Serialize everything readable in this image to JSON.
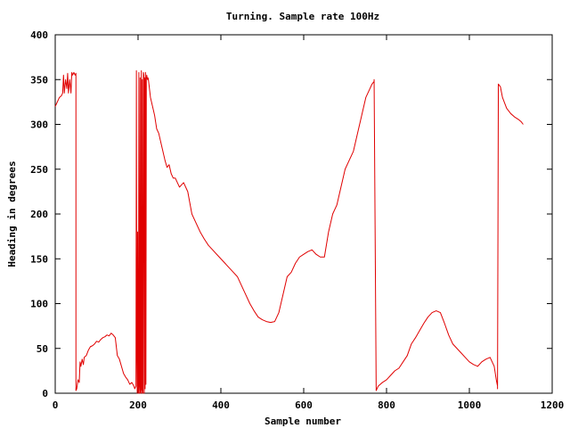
{
  "chart_data": {
    "type": "line",
    "title": "Turning. Sample rate 100Hz",
    "xlabel": "Sample number",
    "ylabel": "Heading in degrees",
    "xlim": [
      0,
      1200
    ],
    "ylim": [
      0,
      400
    ],
    "xticks": [
      "0",
      "200",
      "400",
      "600",
      "800",
      "1000",
      "1200"
    ],
    "yticks": [
      "0",
      "50",
      "100",
      "150",
      "200",
      "250",
      "300",
      "350",
      "400"
    ],
    "grid": false,
    "legend": "none",
    "series": [
      {
        "color": "#e00000",
        "x": [
          0,
          5,
          10,
          15,
          18,
          20,
          22,
          25,
          28,
          30,
          32,
          35,
          38,
          40,
          42,
          45,
          48,
          50,
          50,
          52,
          55,
          58,
          60,
          62,
          65,
          68,
          70,
          75,
          80,
          85,
          90,
          95,
          100,
          105,
          110,
          115,
          120,
          125,
          130,
          135,
          140,
          145,
          150,
          155,
          160,
          165,
          170,
          175,
          180,
          185,
          190,
          192,
          195,
          196,
          197,
          198,
          199,
          200,
          201,
          202,
          203,
          204,
          205,
          206,
          207,
          208,
          209,
          210,
          211,
          212,
          213,
          214,
          215,
          216,
          217,
          218,
          219,
          220,
          221,
          222,
          223,
          224,
          225,
          230,
          235,
          240,
          245,
          250,
          255,
          260,
          265,
          270,
          275,
          280,
          285,
          290,
          295,
          300,
          310,
          320,
          330,
          340,
          350,
          360,
          370,
          380,
          390,
          400,
          410,
          420,
          430,
          440,
          450,
          460,
          470,
          480,
          490,
          500,
          510,
          520,
          530,
          540,
          550,
          560,
          570,
          580,
          590,
          600,
          610,
          620,
          630,
          640,
          650,
          660,
          670,
          680,
          690,
          700,
          710,
          720,
          730,
          740,
          750,
          760,
          765,
          770,
          770,
          775,
          780,
          790,
          800,
          810,
          820,
          830,
          840,
          850,
          860,
          870,
          880,
          890,
          900,
          910,
          920,
          930,
          940,
          950,
          960,
          970,
          980,
          990,
          1000,
          1010,
          1020,
          1030,
          1040,
          1050,
          1060,
          1065,
          1068,
          1068,
          1070,
          1075,
          1080,
          1090,
          1100,
          1110,
          1120,
          1125,
          1130
        ],
        "y": [
          320,
          325,
          330,
          332,
          335,
          355,
          335,
          350,
          340,
          357,
          335,
          350,
          335,
          358,
          355,
          358,
          355,
          357,
          3,
          5,
          15,
          12,
          35,
          30,
          38,
          32,
          40,
          42,
          48,
          52,
          53,
          55,
          58,
          57,
          60,
          62,
          63,
          65,
          64,
          67,
          65,
          62,
          42,
          38,
          30,
          22,
          18,
          15,
          10,
          12,
          8,
          5,
          8,
          360,
          50,
          0,
          180,
          5,
          0,
          358,
          10,
          0,
          352,
          0,
          5,
          360,
          0,
          350,
          5,
          0,
          358,
          355,
          0,
          352,
          5,
          358,
          10,
          350,
          355,
          352,
          350,
          352,
          350,
          330,
          320,
          310,
          295,
          290,
          280,
          270,
          260,
          252,
          255,
          245,
          240,
          240,
          235,
          230,
          235,
          225,
          200,
          190,
          180,
          172,
          165,
          160,
          155,
          150,
          145,
          140,
          135,
          130,
          120,
          110,
          100,
          92,
          85,
          82,
          80,
          79,
          80,
          90,
          110,
          130,
          135,
          145,
          152,
          155,
          158,
          160,
          155,
          152,
          152,
          180,
          200,
          210,
          230,
          250,
          260,
          270,
          290,
          310,
          330,
          340,
          345,
          348,
          350,
          3,
          8,
          12,
          15,
          20,
          25,
          28,
          35,
          42,
          55,
          62,
          70,
          78,
          85,
          90,
          92,
          90,
          78,
          65,
          55,
          50,
          45,
          40,
          35,
          32,
          30,
          35,
          38,
          40,
          30,
          15,
          8,
          5,
          345,
          342,
          330,
          318,
          312,
          308,
          305,
          303,
          300
        ]
      }
    ]
  }
}
